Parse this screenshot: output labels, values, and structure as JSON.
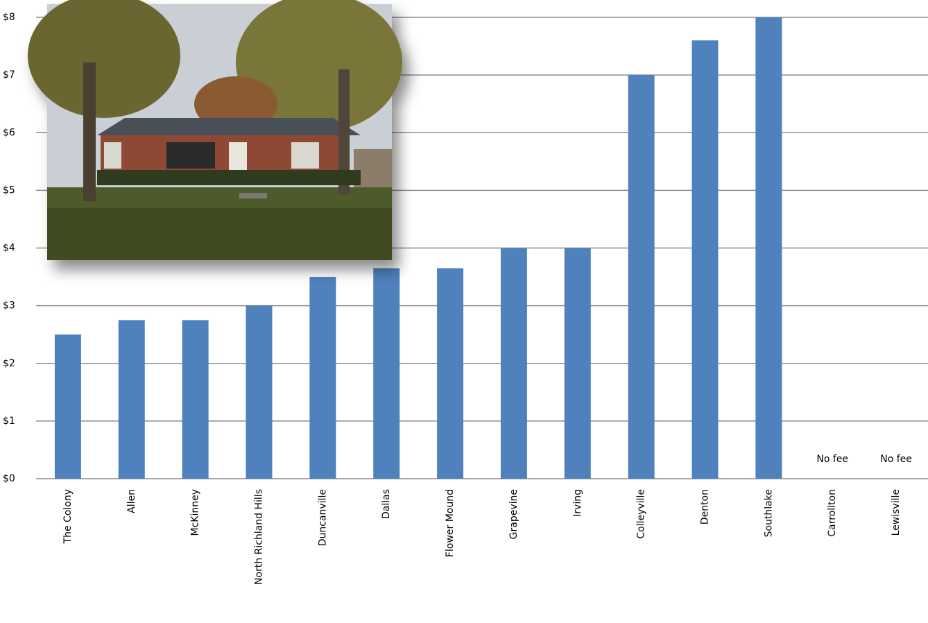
{
  "chart_data": {
    "type": "bar",
    "categories": [
      "The Colony",
      "Allen",
      "McKinney",
      "North Richland Hills",
      "Duncanville",
      "Dallas",
      "Flower Mound",
      "Grapevine",
      "Irving",
      "Colleyville",
      "Denton",
      "Southlake",
      "Carrollton",
      "Lewisville"
    ],
    "values": [
      2.5,
      2.75,
      2.75,
      3,
      3.5,
      3.65,
      3.65,
      4,
      4,
      7,
      7.6,
      8,
      0,
      0
    ],
    "value_labels": [
      null,
      null,
      null,
      null,
      null,
      null,
      null,
      null,
      null,
      null,
      null,
      null,
      "No fee",
      "No fee"
    ],
    "color": "#4f81bd",
    "ylim": [
      0,
      8
    ],
    "yticks": [
      {
        "value": 0,
        "label": "$0"
      },
      {
        "value": 1,
        "label": "$1"
      },
      {
        "value": 2,
        "label": "$2"
      },
      {
        "value": 3,
        "label": "$3"
      },
      {
        "value": 4,
        "label": "$4"
      },
      {
        "value": 5,
        "label": "$5"
      },
      {
        "value": 6,
        "label": "$6"
      },
      {
        "value": 7,
        "label": "$7"
      },
      {
        "value": 8,
        "label": "$8"
      }
    ],
    "grid": true
  }
}
